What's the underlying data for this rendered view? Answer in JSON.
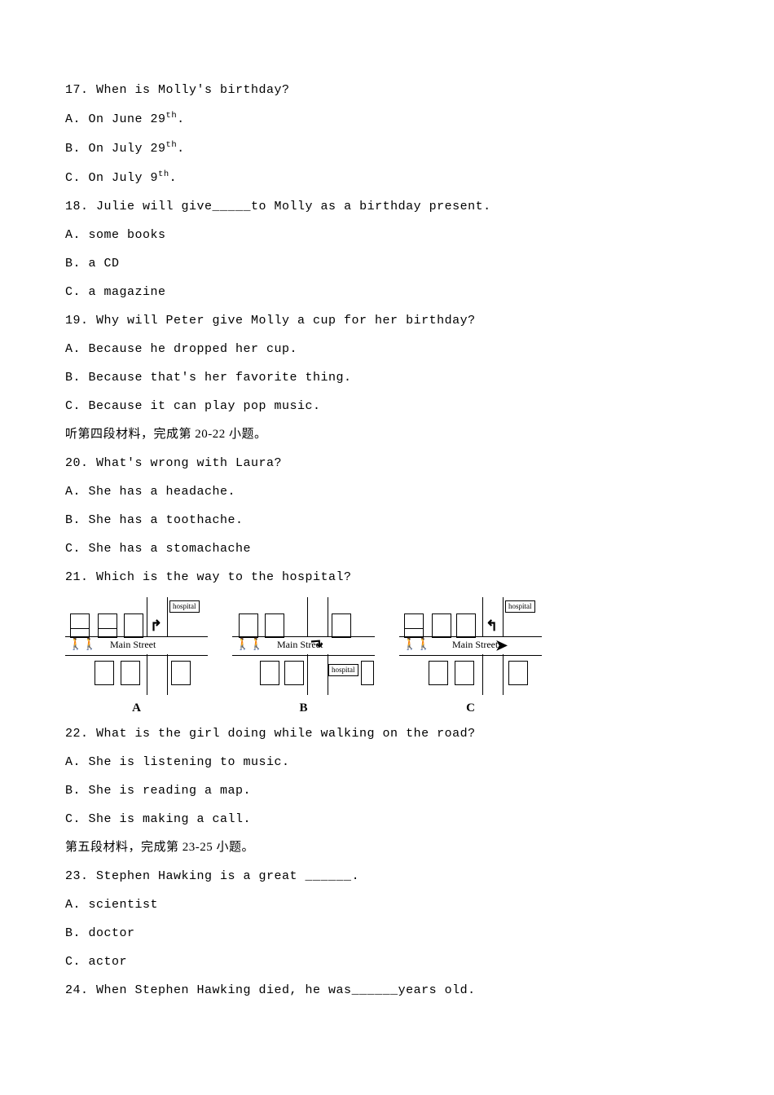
{
  "q17": {
    "prompt": "17. When is Molly's birthday?",
    "a": "A. On June 29",
    "a_sup": "th",
    "a_end": ".",
    "b": "B. On July 29",
    "b_sup": "th",
    "b_end": ".",
    "c": "C. On July 9",
    "c_sup": "th",
    "c_end": "."
  },
  "q18": {
    "prompt_pre": "18. Julie will give",
    "prompt_post": "to Molly as a birthday present.",
    "a": "A. some books",
    "b": "B. a CD",
    "c": "C. a magazine"
  },
  "q19": {
    "prompt": "19. Why will Peter give Molly a cup for her birthday?",
    "a": "A. Because he dropped her cup.",
    "b": "B. Because that's her favorite thing.",
    "c": "C. Because it can play pop music."
  },
  "sec4": "听第四段材料，完成第 20-22 小题。",
  "q20": {
    "prompt": "20. What's wrong with Laura?",
    "a": "A. She has a headache.",
    "b": "B. She has a toothache.",
    "c": "C. She has a stomachache"
  },
  "q21": {
    "prompt": "21. Which is the way to the hospital?",
    "labels": {
      "a": "A",
      "b": "B",
      "c": "C"
    },
    "hosp": "hospital",
    "street": "Main Street",
    "street_b": "Main Street"
  },
  "q22": {
    "prompt": "22. What is the girl doing while walking on the road?",
    "a": "A. She is listening to music.",
    "b": "B. She is reading a map.",
    "c": "C. She is making a call."
  },
  "sec5": "第五段材料，完成第 23-25 小题。",
  "q23": {
    "prompt_pre": "23. Stephen Hawking is a great ",
    "prompt_post": ".",
    "a": "A. scientist",
    "b": "B. doctor",
    "c": "C. actor"
  },
  "q24": {
    "prompt_pre": "24. When Stephen Hawking died, he was",
    "prompt_post": "years old."
  }
}
